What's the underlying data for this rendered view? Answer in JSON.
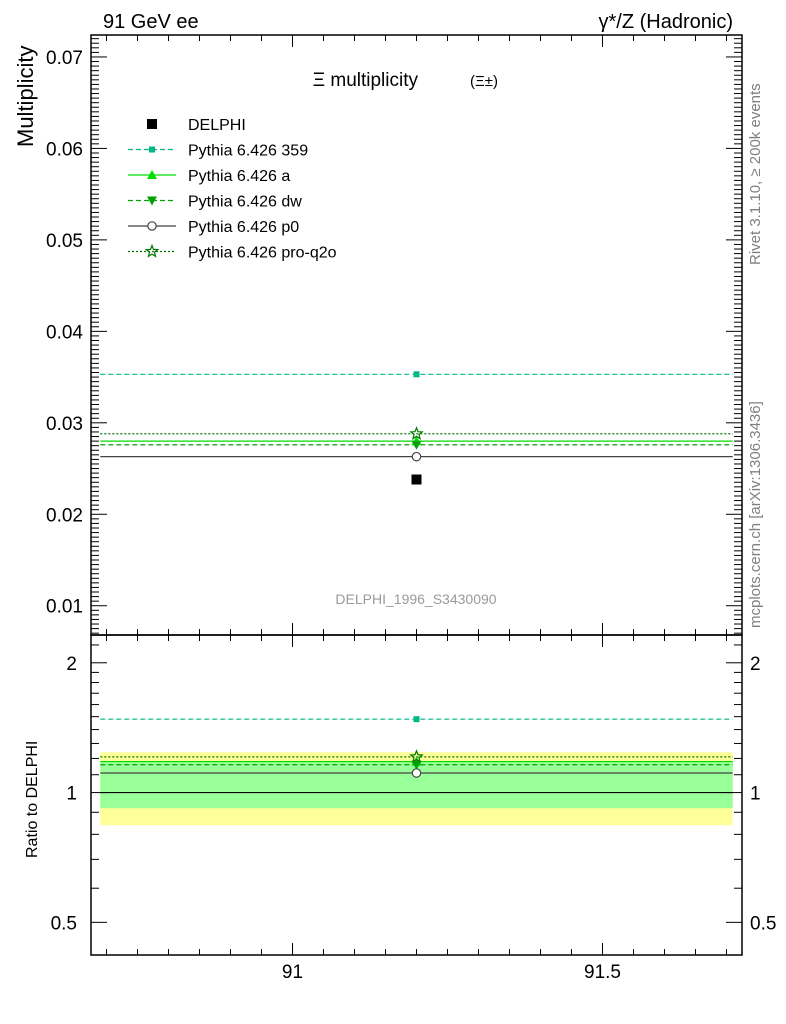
{
  "header": {
    "left_label": "91 GeV ee",
    "right_label": "γ*/Z (Hadronic)"
  },
  "side_text": {
    "rivet": "Rivet 3.1.10, ≥ 200k events",
    "mcplots": "mcplots.cern.ch [arXiv:1306.3436]"
  },
  "chart_data": [
    {
      "type": "scatter",
      "panel": "main",
      "title": "Ξ multiplicity",
      "title_suffix": "(Ξ±)",
      "ylabel": "Multiplicity",
      "watermark": "DELPHI_1996_S3430090",
      "xlim": [
        90.675,
        91.725
      ],
      "ylim": [
        0.0068,
        0.0724
      ],
      "yticks": [
        0.01,
        0.02,
        0.03,
        0.04,
        0.05,
        0.06,
        0.07
      ],
      "ytick_labels": [
        "0.01",
        "0.02",
        "0.03",
        "0.04",
        "0.05",
        "0.06",
        "0.07"
      ],
      "x_bin": [
        90.69,
        91.71
      ],
      "x_point": 91.2,
      "legend_position": "top-left",
      "series": [
        {
          "name": "DELPHI",
          "value": 0.0238,
          "color": "#000000",
          "marker": "square",
          "line": "none"
        },
        {
          "name": "Pythia 6.426 359",
          "value": 0.0353,
          "color": "#00b785",
          "marker": "small-square",
          "line": "dashed"
        },
        {
          "name": "Pythia 6.426 a",
          "value": 0.028,
          "color": "#00dd00",
          "marker": "triangle-up",
          "line": "solid"
        },
        {
          "name": "Pythia 6.426 dw",
          "value": 0.0276,
          "color": "#00a300",
          "marker": "triangle-down",
          "line": "dashed"
        },
        {
          "name": "Pythia 6.426 p0",
          "value": 0.0263,
          "color": "#444444",
          "marker": "open-circle",
          "line": "solid"
        },
        {
          "name": "Pythia 6.426 pro-q2o",
          "value": 0.0288,
          "color": "#007700",
          "marker": "open-star",
          "line": "dotted"
        }
      ]
    },
    {
      "type": "scatter",
      "panel": "ratio",
      "ylabel": "Ratio to DELPHI",
      "ylim": [
        0.42,
        2.32
      ],
      "log_scale": true,
      "xlim": [
        90.675,
        91.725
      ],
      "xticks": [
        91,
        91.5
      ],
      "xtick_labels": [
        "91",
        "91.5"
      ],
      "yticks": [
        0.5,
        1,
        2
      ],
      "ytick_labels": [
        "0.5",
        "1",
        "2"
      ],
      "bands": [
        {
          "name": "total uncertainty",
          "low": 0.84,
          "high": 1.24,
          "color": "#ffff99"
        },
        {
          "name": "statistical uncertainty",
          "low": 0.92,
          "high": 1.18,
          "color": "#99ff99"
        }
      ],
      "series": [
        {
          "name": "Pythia 6.426 359",
          "value": 1.48
        },
        {
          "name": "Pythia 6.426 a",
          "value": 1.18
        },
        {
          "name": "Pythia 6.426 dw",
          "value": 1.16
        },
        {
          "name": "Pythia 6.426 p0",
          "value": 1.11
        },
        {
          "name": "Pythia 6.426 pro-q2o",
          "value": 1.21
        }
      ]
    }
  ]
}
